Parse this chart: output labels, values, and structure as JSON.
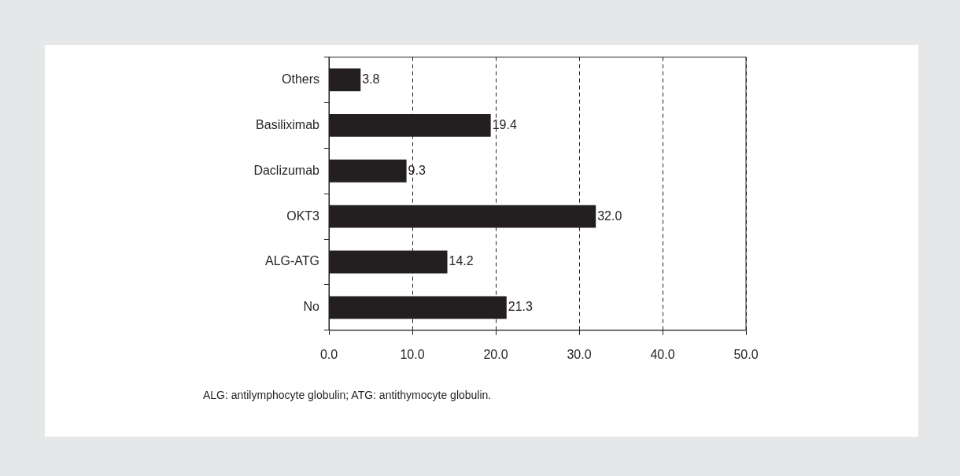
{
  "chart_data": {
    "type": "bar",
    "orientation": "horizontal",
    "categories": [
      "Others",
      "Basiliximab",
      "Daclizumab",
      "OKT3",
      "ALG-ATG",
      "No"
    ],
    "values": [
      3.8,
      19.4,
      9.3,
      32.0,
      14.2,
      21.3
    ],
    "value_labels": [
      "3.8",
      "19.4",
      "9.3",
      "32.0",
      "14.2",
      "21.3"
    ],
    "color": "#231f20",
    "xlim": [
      0,
      50
    ],
    "xticks": [
      {
        "value": 0,
        "label": "0.0"
      },
      {
        "value": 10,
        "label": "10.0"
      },
      {
        "value": 20,
        "label": "20.0"
      },
      {
        "value": 30,
        "label": "30.0"
      },
      {
        "value": 40,
        "label": "40.0"
      },
      {
        "value": 50,
        "label": "50.0"
      }
    ],
    "grid": "x",
    "legend": false,
    "annotations": [
      "ALG: antilymphocyte globulin; ATG: antithymocyte globulin."
    ]
  }
}
